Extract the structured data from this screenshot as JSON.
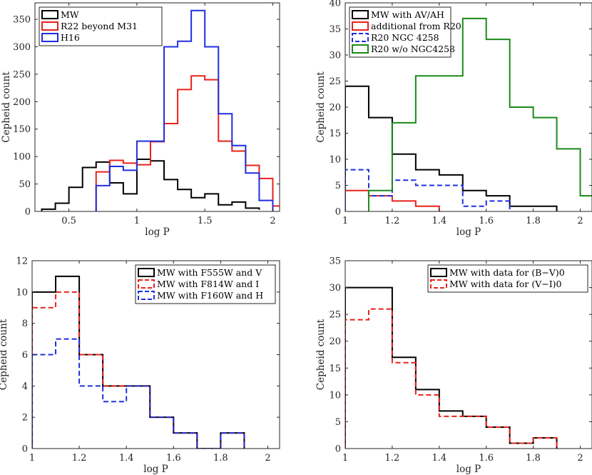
{
  "colors": {
    "black": "#000000",
    "red": "#e8221b",
    "blue": "#1f2fe0",
    "green": "#1a8a1a"
  },
  "chart_data": [
    {
      "type": "histogram",
      "xlabel": "log P",
      "ylabel": "Cepheid count",
      "xlim": [
        0.25,
        2.05
      ],
      "ylim": [
        0,
        380
      ],
      "xticks": [
        0.5,
        1,
        1.5,
        2
      ],
      "xtick_labels": [
        "0.5",
        "1",
        "1.5",
        "2"
      ],
      "yticks": [
        0,
        50,
        100,
        150,
        200,
        250,
        300,
        350
      ],
      "ytick_labels": [
        "0",
        "50",
        "100",
        "150",
        "200",
        "250",
        "300",
        "350"
      ],
      "legend_position": "top-left",
      "series": [
        {
          "name": "MW",
          "color": "#000000",
          "dash": "solid",
          "edges": [
            0.3,
            0.4,
            0.5,
            0.6,
            0.7,
            0.8,
            0.9,
            1.0,
            1.1,
            1.2,
            1.3,
            1.4,
            1.5,
            1.6,
            1.7,
            1.8,
            1.9
          ],
          "values": [
            4,
            15,
            44,
            80,
            90,
            52,
            32,
            95,
            92,
            58,
            40,
            25,
            32,
            12,
            17,
            6,
            3
          ]
        },
        {
          "name": "R22 beyond M31",
          "color": "#e8221b",
          "dash": "solid",
          "edges": [
            0.7,
            0.8,
            0.9,
            1.0,
            1.1,
            1.2,
            1.3,
            1.4,
            1.5,
            1.6,
            1.7,
            1.8,
            1.9,
            2.0,
            2.1
          ],
          "values": [
            72,
            93,
            88,
            85,
            127,
            160,
            222,
            247,
            240,
            128,
            110,
            84,
            60,
            10
          ]
        },
        {
          "name": "H16",
          "color": "#1f2fe0",
          "dash": "solid",
          "edges": [
            0.7,
            0.8,
            0.9,
            1.0,
            1.1,
            1.2,
            1.3,
            1.4,
            1.5,
            1.6,
            1.7,
            1.8,
            1.9,
            2.0
          ],
          "values": [
            47,
            82,
            75,
            128,
            128,
            300,
            310,
            366,
            300,
            178,
            120,
            70,
            20
          ]
        }
      ]
    },
    {
      "type": "histogram",
      "xlabel": "log P",
      "ylabel": "Cepheid count",
      "xlim": [
        1.0,
        2.05
      ],
      "ylim": [
        0,
        40
      ],
      "xticks": [
        1,
        1.2,
        1.4,
        1.6,
        1.8,
        2
      ],
      "xtick_labels": [
        "1",
        "1.2",
        "1.4",
        "1.6",
        "1.8",
        "2"
      ],
      "yticks": [
        0,
        5,
        10,
        15,
        20,
        25,
        30,
        35,
        40
      ],
      "ytick_labels": [
        "0",
        "5",
        "10",
        "15",
        "20",
        "25",
        "30",
        "35",
        "40"
      ],
      "legend_position": "top-left",
      "series": [
        {
          "name": "MW with AV/AH",
          "color": "#000000",
          "dash": "solid",
          "edges": [
            1.0,
            1.1,
            1.2,
            1.3,
            1.4,
            1.5,
            1.6,
            1.7,
            1.8,
            1.9
          ],
          "values": [
            24,
            18,
            11,
            8,
            7,
            4,
            3,
            1,
            1
          ]
        },
        {
          "name": "additional from R20",
          "color": "#e8221b",
          "dash": "solid",
          "edges": [
            1.0,
            1.1,
            1.2,
            1.3,
            1.4
          ],
          "values": [
            4,
            3,
            2,
            1
          ]
        },
        {
          "name": "R20 NGC 4258",
          "color": "#1f2fe0",
          "dash": "dashed",
          "edges": [
            1.0,
            1.1,
            1.2,
            1.3,
            1.4,
            1.5,
            1.6,
            1.7
          ],
          "values": [
            8,
            3,
            6,
            5,
            5,
            1,
            2
          ]
        },
        {
          "name": "R20 w/o NGC4258",
          "color": "#1a8a1a",
          "dash": "solid",
          "edges": [
            1.1,
            1.2,
            1.3,
            1.5,
            1.6,
            1.7,
            1.8,
            1.9,
            2.0,
            2.1
          ],
          "values": [
            4,
            17,
            26,
            37,
            33,
            20,
            18,
            12,
            3
          ]
        }
      ]
    },
    {
      "type": "histogram",
      "xlabel": "log P",
      "ylabel": "Cepheid count",
      "xlim": [
        1.0,
        2.05
      ],
      "ylim": [
        0,
        12
      ],
      "xticks": [
        1,
        1.2,
        1.4,
        1.6,
        1.8,
        2
      ],
      "xtick_labels": [
        "1",
        "1.2",
        "1.4",
        "1.6",
        "1.8",
        "2"
      ],
      "yticks": [
        0,
        2,
        4,
        6,
        8,
        10,
        12
      ],
      "ytick_labels": [
        "0",
        "2",
        "4",
        "6",
        "8",
        "10",
        "12"
      ],
      "legend_position": "top-right",
      "series": [
        {
          "name": "MW with F555W and V",
          "color": "#000000",
          "dash": "solid",
          "edges": [
            1.0,
            1.1,
            1.2,
            1.3,
            1.5,
            1.6,
            1.7,
            1.8,
            1.9
          ],
          "values": [
            10,
            11,
            6,
            4,
            2,
            1,
            0,
            1
          ]
        },
        {
          "name": "MW with F814W and I",
          "color": "#e8221b",
          "dash": "dashed",
          "edges": [
            1.0,
            1.1,
            1.2,
            1.3,
            1.5,
            1.6,
            1.7,
            1.8,
            1.9
          ],
          "values": [
            9,
            10,
            6,
            4,
            2,
            1,
            0,
            1
          ]
        },
        {
          "name": "MW with F160W and H",
          "color": "#1f2fe0",
          "dash": "dashed",
          "edges": [
            1.0,
            1.1,
            1.2,
            1.3,
            1.4,
            1.5,
            1.6,
            1.7,
            1.8,
            1.9
          ],
          "values": [
            6,
            7,
            4,
            3,
            4,
            2,
            1,
            0,
            1
          ]
        }
      ]
    },
    {
      "type": "histogram",
      "xlabel": "log P",
      "ylabel": "Cepheid count",
      "xlim": [
        1.0,
        2.05
      ],
      "ylim": [
        0,
        35
      ],
      "xticks": [
        1,
        1.2,
        1.4,
        1.6,
        1.8,
        2
      ],
      "xtick_labels": [
        "1",
        "1.2",
        "1.4",
        "1.6",
        "1.8",
        "2"
      ],
      "yticks": [
        0,
        5,
        10,
        15,
        20,
        25,
        30,
        35
      ],
      "ytick_labels": [
        "0",
        "5",
        "10",
        "15",
        "20",
        "25",
        "30",
        "35"
      ],
      "legend_position": "top-right",
      "series": [
        {
          "name": "MW with data for (B−V)0",
          "color": "#000000",
          "dash": "solid",
          "edges": [
            1.0,
            1.2,
            1.3,
            1.4,
            1.5,
            1.6,
            1.7,
            1.8,
            1.9
          ],
          "values": [
            30,
            17,
            11,
            7,
            6,
            4,
            1,
            2
          ]
        },
        {
          "name": "MW with data for (V−I)0",
          "color": "#e8221b",
          "dash": "dashed",
          "edges": [
            1.0,
            1.1,
            1.2,
            1.3,
            1.4,
            1.5,
            1.6,
            1.7,
            1.8,
            1.9
          ],
          "values": [
            24,
            26,
            16,
            10,
            6,
            6,
            4,
            1,
            2
          ]
        }
      ]
    }
  ]
}
